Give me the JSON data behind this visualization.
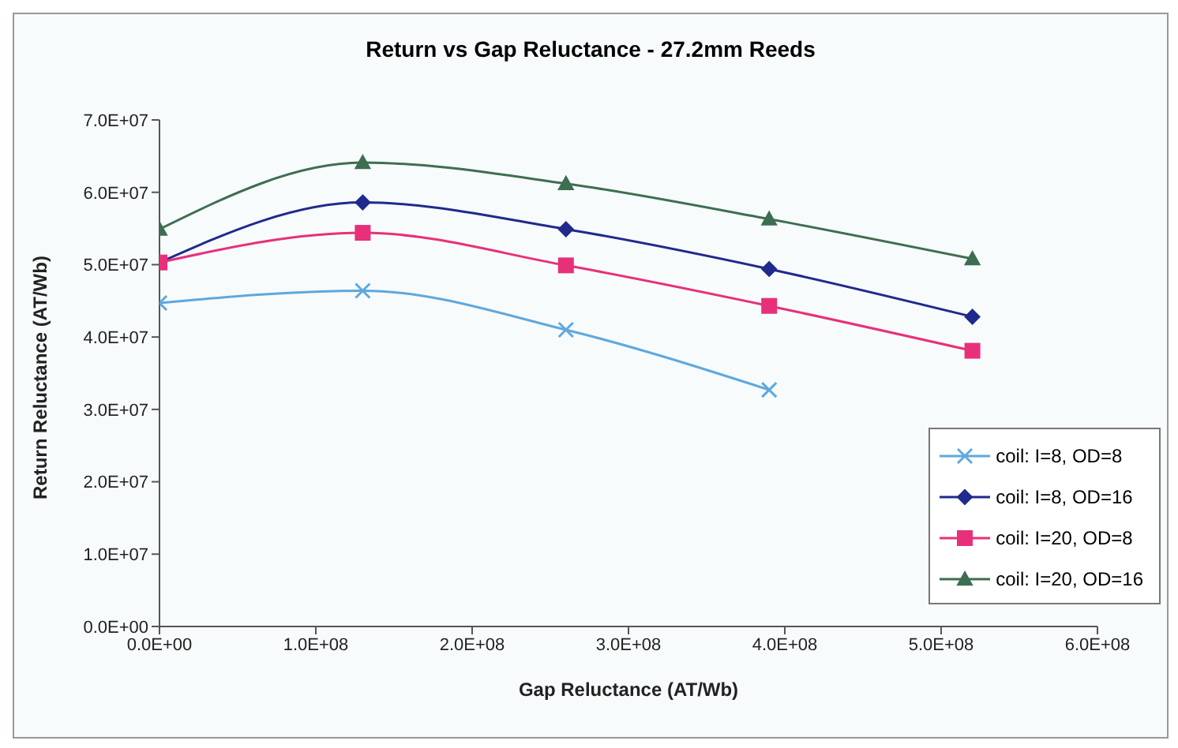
{
  "chart_data": {
    "type": "line",
    "title": "Return vs Gap Reluctance - 27.2mm Reeds",
    "xlabel": "Gap Reluctance (AT/Wb)",
    "ylabel": "Return Reluctance (AT/Wb)",
    "x": [
      0,
      130000000,
      260000000,
      390000000,
      520000000
    ],
    "series": [
      {
        "name": "coil: I=8, OD=8",
        "color": "#5fa8dc",
        "marker": "cross",
        "values": [
          44700000,
          46400000,
          41000000,
          32700000,
          null
        ]
      },
      {
        "name": "coil: I=8, OD=16",
        "color": "#1f2a8c",
        "marker": "diamond",
        "values": [
          50300000,
          58600000,
          54900000,
          49400000,
          42800000
        ]
      },
      {
        "name": "coil: I=20, OD=8",
        "color": "#e8307a",
        "marker": "square",
        "values": [
          50300000,
          54400000,
          49900000,
          44300000,
          38100000
        ]
      },
      {
        "name": "coil: I=20, OD=16",
        "color": "#3e6e52",
        "marker": "triangle",
        "values": [
          54900000,
          64100000,
          61200000,
          56300000,
          50800000
        ]
      }
    ],
    "xlim": [
      0,
      600000000
    ],
    "xticks": [
      {
        "value": 0,
        "label": "0.0E+00"
      },
      {
        "value": 100000000,
        "label": "1.0E+08"
      },
      {
        "value": 200000000,
        "label": "2.0E+08"
      },
      {
        "value": 300000000,
        "label": "3.0E+08"
      },
      {
        "value": 400000000,
        "label": "4.0E+08"
      },
      {
        "value": 500000000,
        "label": "5.0E+08"
      },
      {
        "value": 600000000,
        "label": "6.0E+08"
      }
    ],
    "ylim": [
      0,
      70000000
    ],
    "yticks": [
      {
        "value": 0,
        "label": "0.0E+00"
      },
      {
        "value": 10000000,
        "label": "1.0E+07"
      },
      {
        "value": 20000000,
        "label": "2.0E+07"
      },
      {
        "value": 30000000,
        "label": "3.0E+07"
      },
      {
        "value": 40000000,
        "label": "4.0E+07"
      },
      {
        "value": 50000000,
        "label": "5.0E+07"
      },
      {
        "value": 60000000,
        "label": "6.0E+07"
      },
      {
        "value": 70000000,
        "label": "7.0E+07"
      }
    ],
    "grid": false,
    "legend": "bottom right",
    "line_style": "solid"
  }
}
